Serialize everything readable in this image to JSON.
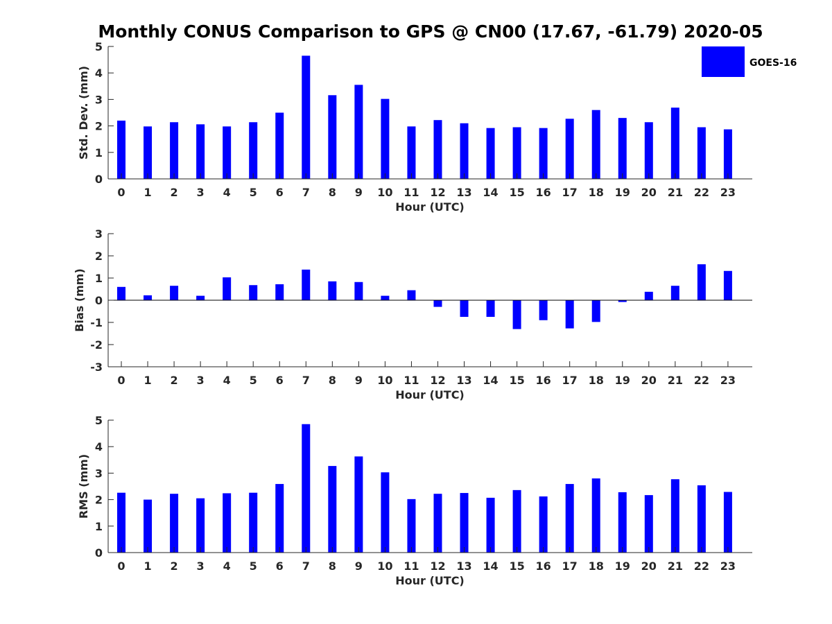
{
  "chart_data": {
    "title": "Monthly CONUS Comparison to GPS @ CN00 (17.67, -61.79) 2020-05",
    "type": "bar",
    "bar_color": "#0000ff",
    "legend": {
      "label": "GOES-16",
      "placement": "top-right"
    },
    "categories": [
      "0",
      "1",
      "2",
      "3",
      "4",
      "5",
      "6",
      "7",
      "8",
      "9",
      "10",
      "11",
      "12",
      "13",
      "14",
      "15",
      "16",
      "17",
      "18",
      "19",
      "20",
      "21",
      "22",
      "23"
    ],
    "panels": [
      {
        "key": "std",
        "ylabel": "Std. Dev. (mm)",
        "xlabel": "Hour (UTC)",
        "ylim": [
          0,
          5
        ],
        "yticks": [
          "0",
          "1",
          "2",
          "3",
          "4",
          "5"
        ],
        "values": [
          2.2,
          1.98,
          2.14,
          2.06,
          1.98,
          2.14,
          2.5,
          4.65,
          3.16,
          3.55,
          3.02,
          1.98,
          2.22,
          2.1,
          1.92,
          1.95,
          1.92,
          2.27,
          2.6,
          2.3,
          2.14,
          2.69,
          1.95,
          1.87
        ]
      },
      {
        "key": "bias",
        "ylabel": "Bias (mm)",
        "xlabel": "Hour (UTC)",
        "ylim": [
          -3,
          3
        ],
        "yticks": [
          "-3",
          "-2",
          "-1",
          "0",
          "1",
          "2",
          "3"
        ],
        "values": [
          0.6,
          0.22,
          0.65,
          0.2,
          1.03,
          0.68,
          0.72,
          1.38,
          0.85,
          0.82,
          0.2,
          0.45,
          -0.3,
          -0.75,
          -0.75,
          -1.3,
          -0.9,
          -1.27,
          -0.98,
          -0.08,
          0.38,
          0.65,
          1.62,
          1.32
        ]
      },
      {
        "key": "rms",
        "ylabel": "RMS (mm)",
        "xlabel": "Hour (UTC)",
        "ylim": [
          0,
          5
        ],
        "yticks": [
          "0",
          "1",
          "2",
          "3",
          "4",
          "5"
        ],
        "values": [
          2.26,
          2.0,
          2.22,
          2.05,
          2.24,
          2.26,
          2.59,
          4.85,
          3.27,
          3.63,
          3.03,
          2.02,
          2.22,
          2.25,
          2.07,
          2.36,
          2.12,
          2.59,
          2.8,
          2.28,
          2.17,
          2.77,
          2.54,
          2.29
        ]
      }
    ]
  }
}
